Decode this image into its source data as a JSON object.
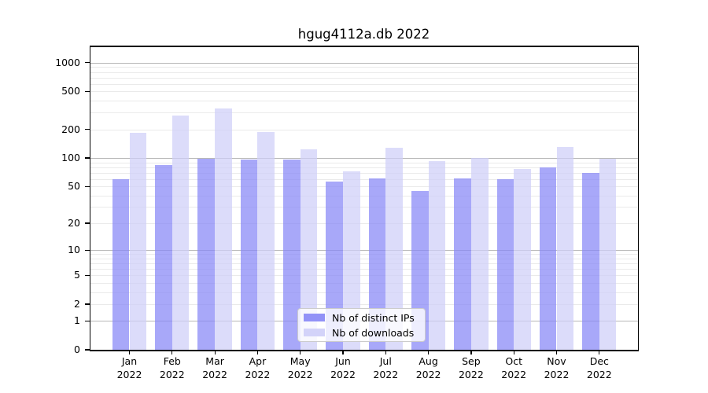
{
  "title": "hgug4112a.db 2022",
  "legend": {
    "items": [
      {
        "label": "Nb of distinct IPs",
        "series_key": "distinct_ips"
      },
      {
        "label": "Nb of downloads",
        "series_key": "downloads"
      }
    ]
  },
  "chart_data": {
    "type": "bar",
    "title": "hgug4112a.db 2022",
    "categories": [
      "Jan 2022",
      "Feb 2022",
      "Mar 2022",
      "Apr 2022",
      "May 2022",
      "Jun 2022",
      "Jul 2022",
      "Aug 2022",
      "Sep 2022",
      "Oct 2022",
      "Nov 2022",
      "Dec 2022"
    ],
    "series": [
      {
        "name": "Nb of distinct IPs",
        "values": [
          60,
          84,
          99,
          96,
          97,
          56,
          61,
          45,
          61,
          60,
          80,
          70
        ]
      },
      {
        "name": "Nb of downloads",
        "values": [
          184,
          280,
          331,
          186,
          124,
          72,
          127,
          92,
          100,
          76,
          130,
          98
        ]
      }
    ],
    "xlabel": "",
    "ylabel": "",
    "yscale": "log1p",
    "yticks": [
      0,
      1,
      2,
      5,
      10,
      20,
      50,
      100,
      200,
      500,
      1000
    ],
    "ylim": [
      0,
      1480
    ],
    "grid": true,
    "legend_position": "lower center",
    "colors": {
      "distinct_ips": "#8686f6",
      "downloads": "#cecef8"
    },
    "gridline_major_color": "#b8b8b8",
    "gridline_minor_color": "#eaeaea"
  }
}
